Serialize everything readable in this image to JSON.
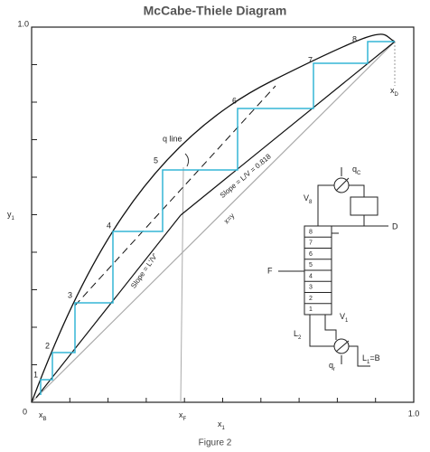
{
  "title": "McCabe-Thiele Diagram",
  "caption": "Figure 2",
  "axes": {
    "origin": "0",
    "y_max": "1.0",
    "x_max": "1.0",
    "y_label": {
      "main": "y",
      "sub": "1"
    },
    "x_label": {
      "main": "x",
      "sub": "1"
    }
  },
  "points": {
    "x_b": {
      "main": "x",
      "sub": "B"
    },
    "x_f": {
      "main": "x",
      "sub": "F"
    },
    "x_d": {
      "main": "x",
      "sub": "D"
    }
  },
  "stages": [
    "1",
    "2",
    "3",
    "4",
    "5",
    "6",
    "7",
    "8"
  ],
  "line_labels": {
    "q_line": "q line",
    "rectifying": "Slope = L/V = 0.818",
    "stripping": "Slope = L'/V'",
    "diagonal": "x=y"
  },
  "column": {
    "trays": [
      "8",
      "7",
      "6",
      "5",
      "4",
      "3",
      "2",
      "1"
    ],
    "q_c": {
      "main": "q",
      "sub": "C"
    },
    "v_top": {
      "main": "V",
      "sub": "8"
    },
    "distillate": "D",
    "feed": "F",
    "l_bottom": {
      "main": "L",
      "sub": "2"
    },
    "v_bottom": {
      "main": "V",
      "sub": "1"
    },
    "q_r": {
      "main": "q",
      "sub": "r"
    },
    "bottoms": {
      "main": "L",
      "sub": "1",
      "rest": "=B"
    }
  }
}
